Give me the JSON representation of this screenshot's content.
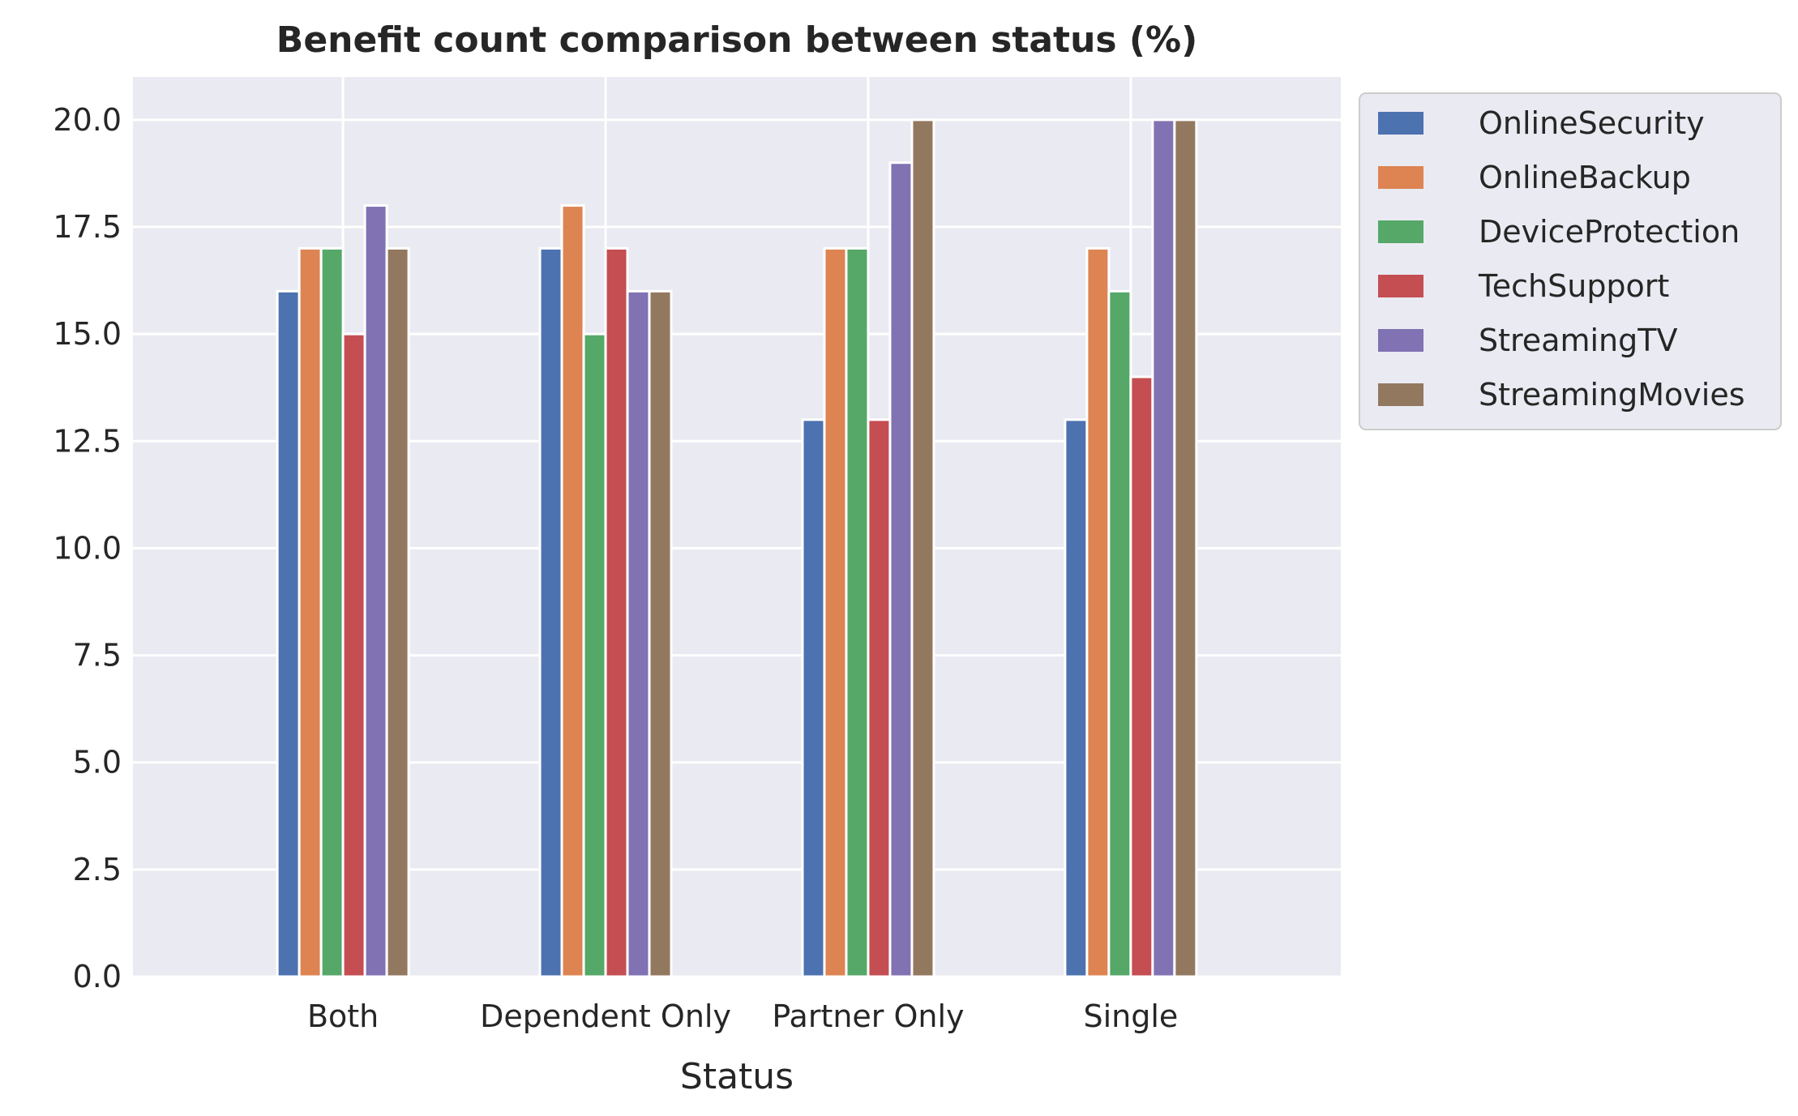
{
  "chart_data": {
    "type": "bar",
    "title": "Benefit count comparison between status (%)",
    "xlabel": "Status",
    "ylabel": "",
    "categories": [
      "Both",
      "Dependent Only",
      "Partner Only",
      "Single"
    ],
    "series": [
      {
        "name": "OnlineSecurity",
        "color": "#4c72b0",
        "values": [
          16,
          17,
          13,
          13
        ]
      },
      {
        "name": "OnlineBackup",
        "color": "#dd8452",
        "values": [
          17,
          18,
          17,
          17
        ]
      },
      {
        "name": "DeviceProtection",
        "color": "#55a868",
        "values": [
          17,
          15,
          17,
          16
        ]
      },
      {
        "name": "TechSupport",
        "color": "#c44e52",
        "values": [
          15,
          17,
          13,
          14
        ]
      },
      {
        "name": "StreamingTV",
        "color": "#8172b3",
        "values": [
          18,
          16,
          19,
          20
        ]
      },
      {
        "name": "StreamingMovies",
        "color": "#937860",
        "values": [
          17,
          16,
          20,
          20
        ]
      }
    ],
    "ylim": [
      0,
      21
    ],
    "yticks": [
      "0.0",
      "2.5",
      "5.0",
      "7.5",
      "10.0",
      "12.5",
      "15.0",
      "17.5",
      "20.0"
    ],
    "grid": true,
    "legend_position": "outside-upper-right",
    "background_color": "#eaeaf2"
  }
}
